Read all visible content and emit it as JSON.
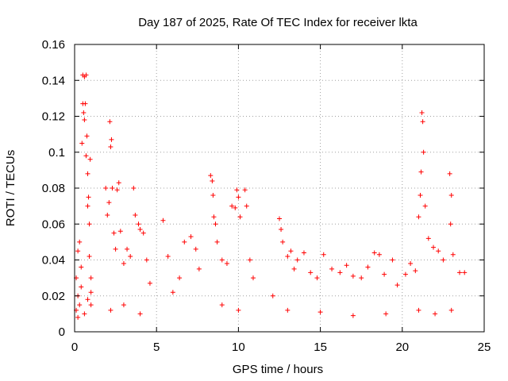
{
  "chart_data": {
    "type": "scatter",
    "title": "Day 187 of 2025, Rate Of TEC Index for receiver lkta",
    "xlabel": "GPS time / hours",
    "ylabel": "ROTI / TECUs",
    "xlim": [
      0,
      25
    ],
    "ylim": [
      0,
      0.16
    ],
    "xticks": [
      0,
      5,
      10,
      15,
      20,
      25
    ],
    "xtick_labels": [
      "0",
      "5",
      "10",
      "15",
      "20",
      "25"
    ],
    "yticks": [
      0,
      0.02,
      0.04,
      0.06,
      0.08,
      0.1,
      0.12,
      0.14,
      0.16
    ],
    "ytick_labels": [
      "0",
      "0.02",
      "0.04",
      "0.06",
      "0.08",
      "0.1",
      "0.12",
      "0.14",
      "0.16"
    ],
    "grid": true,
    "marker": "+",
    "color": "#ff0000",
    "series": [
      {
        "name": "ROTI",
        "points": [
          [
            0.1,
            0.012
          ],
          [
            0.1,
            0.03
          ],
          [
            0.2,
            0.045
          ],
          [
            0.2,
            0.02
          ],
          [
            0.3,
            0.015
          ],
          [
            0.3,
            0.05
          ],
          [
            0.4,
            0.025
          ],
          [
            0.4,
            0.036
          ],
          [
            0.45,
            0.105
          ],
          [
            0.5,
            0.143
          ],
          [
            0.5,
            0.127
          ],
          [
            0.55,
            0.122
          ],
          [
            0.6,
            0.142
          ],
          [
            0.6,
            0.118
          ],
          [
            0.65,
            0.127
          ],
          [
            0.7,
            0.143
          ],
          [
            0.7,
            0.098
          ],
          [
            0.75,
            0.109
          ],
          [
            0.8,
            0.088
          ],
          [
            0.8,
            0.07
          ],
          [
            0.85,
            0.075
          ],
          [
            0.9,
            0.06
          ],
          [
            0.9,
            0.042
          ],
          [
            0.95,
            0.096
          ],
          [
            1.0,
            0.03
          ],
          [
            1.0,
            0.015
          ],
          [
            0.2,
            0.008
          ],
          [
            0.6,
            0.01
          ],
          [
            0.8,
            0.018
          ],
          [
            1.0,
            0.022
          ],
          [
            1.9,
            0.08
          ],
          [
            2.0,
            0.065
          ],
          [
            2.1,
            0.072
          ],
          [
            2.15,
            0.117
          ],
          [
            2.2,
            0.103
          ],
          [
            2.25,
            0.107
          ],
          [
            2.3,
            0.08
          ],
          [
            2.4,
            0.055
          ],
          [
            2.5,
            0.046
          ],
          [
            2.6,
            0.079
          ],
          [
            2.7,
            0.083
          ],
          [
            2.8,
            0.056
          ],
          [
            3.0,
            0.038
          ],
          [
            3.2,
            0.046
          ],
          [
            3.4,
            0.042
          ],
          [
            3.6,
            0.08
          ],
          [
            3.7,
            0.065
          ],
          [
            3.9,
            0.06
          ],
          [
            4.0,
            0.057
          ],
          [
            4.2,
            0.055
          ],
          [
            4.4,
            0.04
          ],
          [
            4.6,
            0.027
          ],
          [
            2.2,
            0.012
          ],
          [
            3.0,
            0.015
          ],
          [
            4.0,
            0.01
          ],
          [
            5.4,
            0.062
          ],
          [
            5.7,
            0.042
          ],
          [
            6.0,
            0.022
          ],
          [
            6.4,
            0.03
          ],
          [
            6.7,
            0.05
          ],
          [
            7.1,
            0.053
          ],
          [
            7.4,
            0.046
          ],
          [
            7.6,
            0.035
          ],
          [
            8.3,
            0.087
          ],
          [
            8.4,
            0.084
          ],
          [
            8.45,
            0.076
          ],
          [
            8.5,
            0.064
          ],
          [
            8.6,
            0.06
          ],
          [
            8.7,
            0.05
          ],
          [
            9.0,
            0.04
          ],
          [
            9.3,
            0.038
          ],
          [
            9.6,
            0.07
          ],
          [
            9.8,
            0.069
          ],
          [
            9.9,
            0.079
          ],
          [
            10.0,
            0.075
          ],
          [
            10.1,
            0.064
          ],
          [
            10.4,
            0.079
          ],
          [
            10.5,
            0.07
          ],
          [
            10.7,
            0.04
          ],
          [
            10.9,
            0.03
          ],
          [
            9.0,
            0.015
          ],
          [
            10.0,
            0.012
          ],
          [
            12.1,
            0.02
          ],
          [
            12.5,
            0.063
          ],
          [
            12.6,
            0.057
          ],
          [
            12.7,
            0.05
          ],
          [
            13.0,
            0.042
          ],
          [
            13.2,
            0.045
          ],
          [
            13.4,
            0.035
          ],
          [
            13.6,
            0.04
          ],
          [
            14.0,
            0.044
          ],
          [
            14.4,
            0.033
          ],
          [
            14.8,
            0.03
          ],
          [
            15.2,
            0.043
          ],
          [
            15.7,
            0.035
          ],
          [
            16.2,
            0.033
          ],
          [
            16.6,
            0.037
          ],
          [
            17.0,
            0.031
          ],
          [
            17.5,
            0.03
          ],
          [
            17.9,
            0.036
          ],
          [
            18.3,
            0.044
          ],
          [
            18.6,
            0.043
          ],
          [
            18.9,
            0.032
          ],
          [
            19.4,
            0.04
          ],
          [
            19.7,
            0.026
          ],
          [
            13.0,
            0.012
          ],
          [
            15.0,
            0.011
          ],
          [
            17.0,
            0.009
          ],
          [
            19.0,
            0.01
          ],
          [
            20.2,
            0.032
          ],
          [
            20.5,
            0.038
          ],
          [
            20.8,
            0.034
          ],
          [
            21.0,
            0.064
          ],
          [
            21.1,
            0.076
          ],
          [
            21.15,
            0.089
          ],
          [
            21.2,
            0.122
          ],
          [
            21.25,
            0.117
          ],
          [
            21.3,
            0.1
          ],
          [
            21.4,
            0.07
          ],
          [
            21.6,
            0.052
          ],
          [
            21.9,
            0.047
          ],
          [
            22.2,
            0.045
          ],
          [
            22.5,
            0.04
          ],
          [
            22.9,
            0.088
          ],
          [
            23.0,
            0.076
          ],
          [
            22.95,
            0.06
          ],
          [
            23.1,
            0.043
          ],
          [
            23.5,
            0.033
          ],
          [
            23.8,
            0.033
          ],
          [
            21.0,
            0.012
          ],
          [
            22.0,
            0.01
          ],
          [
            23.0,
            0.012
          ]
        ]
      }
    ]
  }
}
